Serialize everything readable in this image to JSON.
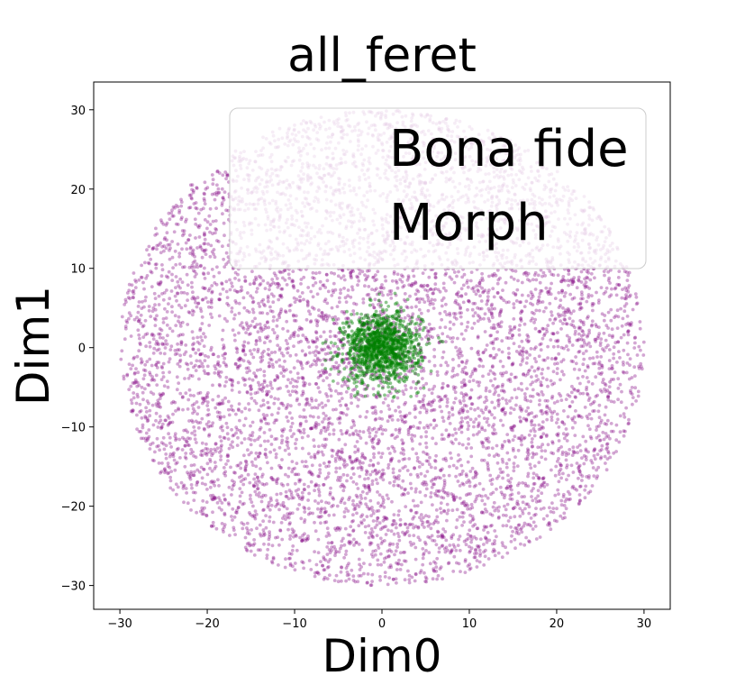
{
  "chart_data": {
    "type": "scatter",
    "title": "all_feret",
    "xlabel": "Dim0",
    "ylabel": "Dim1",
    "xlim": [
      -33,
      33
    ],
    "ylim": [
      -33,
      33.5
    ],
    "xticks": [
      -30,
      -20,
      -10,
      0,
      10,
      20,
      30
    ],
    "yticks": [
      -30,
      -20,
      -10,
      0,
      10,
      20,
      30
    ],
    "xtick_labels": [
      "−30",
      "−20",
      "−10",
      "0",
      "10",
      "20",
      "30"
    ],
    "ytick_labels": [
      "−30",
      "−20",
      "−10",
      "0",
      "10",
      "20",
      "30"
    ],
    "grid": false,
    "legend_position": "top-right",
    "series": [
      {
        "name": "Bona fide",
        "color": "#800080",
        "alpha": 0.35,
        "distribution": "approximately uniform disc centred at (0, 0), radius about 30",
        "approx_point_count": 7000
      },
      {
        "name": "Morph",
        "color": "#008000",
        "alpha": 0.45,
        "distribution": "dense cluster centred at (0, 0), radius about 6",
        "approx_point_count": 1200
      }
    ]
  }
}
